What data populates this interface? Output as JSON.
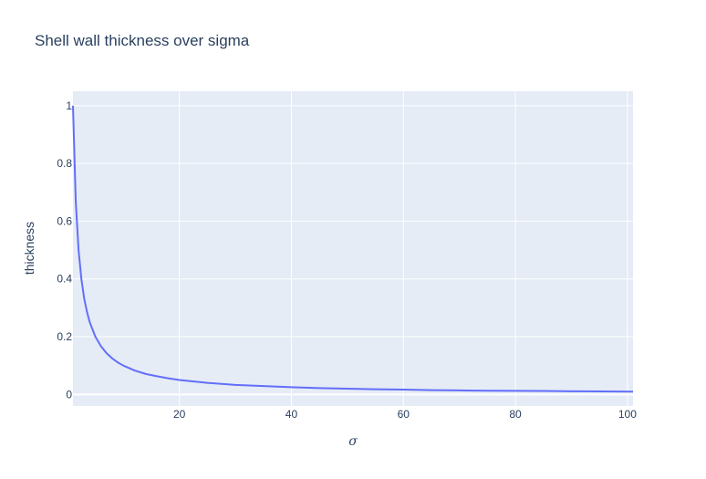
{
  "chart_data": {
    "type": "line",
    "title": "Shell wall thickness over sigma",
    "xlabel": "σ",
    "ylabel": "thickness",
    "xlim": [
      1,
      101
    ],
    "ylim": [
      -0.04,
      1.05
    ],
    "grid": true,
    "x_ticks": [
      20,
      40,
      60,
      80,
      100
    ],
    "x_tick_labels": [
      "20",
      "40",
      "60",
      "80",
      "100"
    ],
    "y_ticks": [
      0,
      0.2,
      0.4,
      0.6,
      0.8,
      1
    ],
    "y_tick_labels": [
      "0",
      "0.2",
      "0.4",
      "0.6",
      "0.8",
      "1"
    ],
    "series": [
      {
        "color": "#636efa",
        "x": [
          1,
          1.5,
          2,
          2.5,
          3,
          3.5,
          4,
          5,
          6,
          7,
          8,
          9,
          10,
          12,
          14,
          16,
          18,
          20,
          25,
          30,
          35,
          40,
          45,
          50,
          55,
          60,
          65,
          70,
          75,
          80,
          85,
          90,
          95,
          101
        ],
        "y": [
          1,
          0.667,
          0.5,
          0.4,
          0.333,
          0.286,
          0.25,
          0.2,
          0.167,
          0.143,
          0.125,
          0.111,
          0.1,
          0.083,
          0.071,
          0.063,
          0.056,
          0.05,
          0.04,
          0.033,
          0.029,
          0.025,
          0.022,
          0.02,
          0.018,
          0.017,
          0.015,
          0.014,
          0.013,
          0.0125,
          0.012,
          0.011,
          0.0105,
          0.0099
        ]
      }
    ]
  }
}
